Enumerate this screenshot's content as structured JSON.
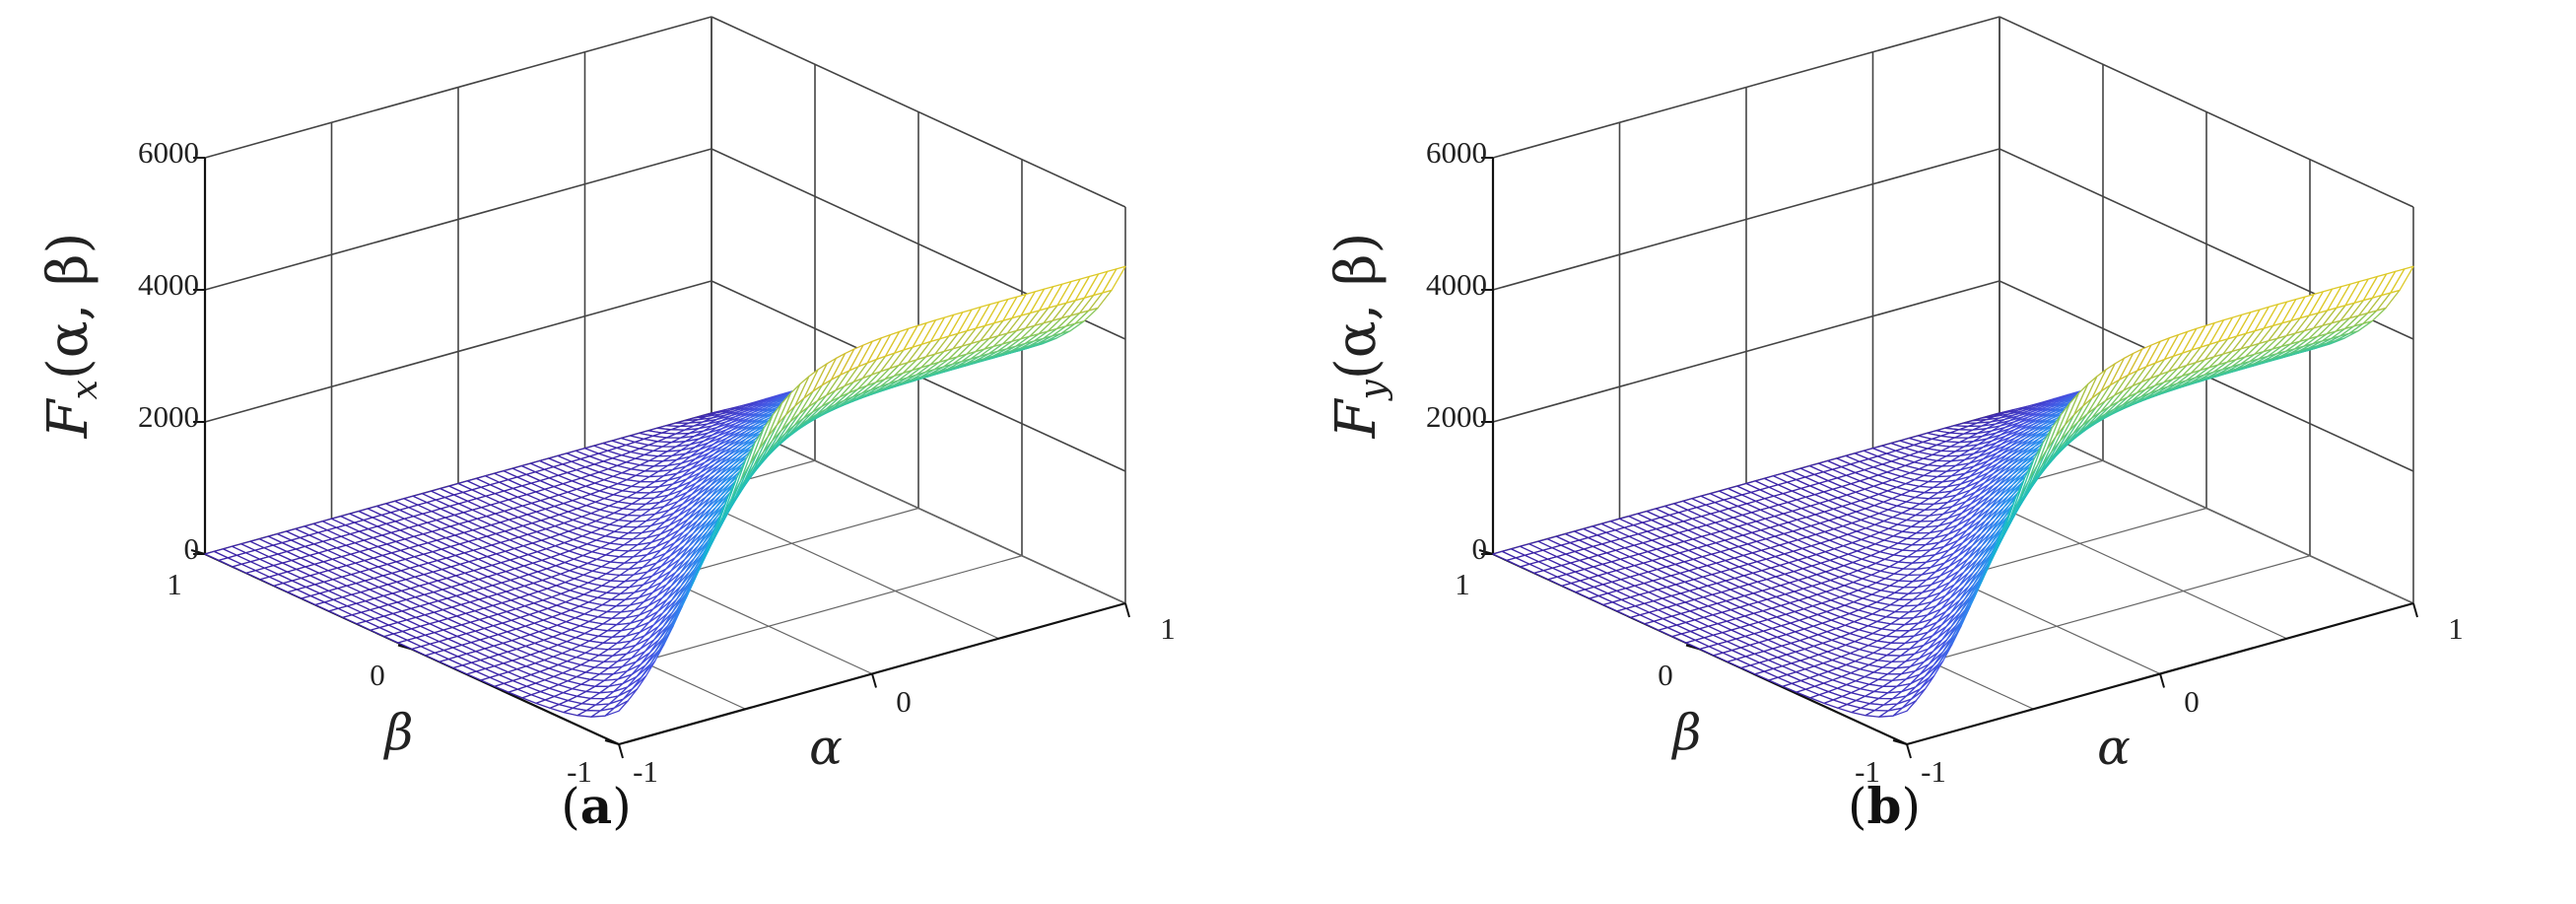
{
  "chart_data": [
    {
      "type": "surface",
      "panel_label": "a",
      "zlabel_main": "F",
      "zlabel_sub": "x",
      "zlabel_args": "(α, β)",
      "xlabel": "α",
      "ylabel": "β",
      "xlim": [
        -1,
        1
      ],
      "ylim": [
        -1,
        1
      ],
      "zlim": [
        0,
        6000
      ],
      "z_ticks": [
        "0",
        "2000",
        "4000",
        "6000"
      ],
      "x_ticks": [
        "-1",
        "0",
        "1"
      ],
      "y_ticks": [
        "-1",
        "0",
        "1"
      ],
      "grid": true,
      "colormap": "parula",
      "z_max_approx": 5200,
      "ridge_peak_approx": 3900
    },
    {
      "type": "surface",
      "panel_label": "b",
      "zlabel_main": "F",
      "zlabel_sub": "y",
      "zlabel_args": "(α, β)",
      "xlabel": "α",
      "ylabel": "β",
      "xlim": [
        -1,
        1
      ],
      "ylim": [
        -1,
        1
      ],
      "zlim": [
        0,
        6000
      ],
      "z_ticks": [
        "0",
        "2000",
        "4000",
        "6000"
      ],
      "x_ticks": [
        "-1",
        "0",
        "1"
      ],
      "y_ticks": [
        "-1",
        "0",
        "1"
      ],
      "grid": true,
      "colormap": "parula",
      "z_max_approx": 5200,
      "ridge_peak_approx": 3900
    }
  ]
}
